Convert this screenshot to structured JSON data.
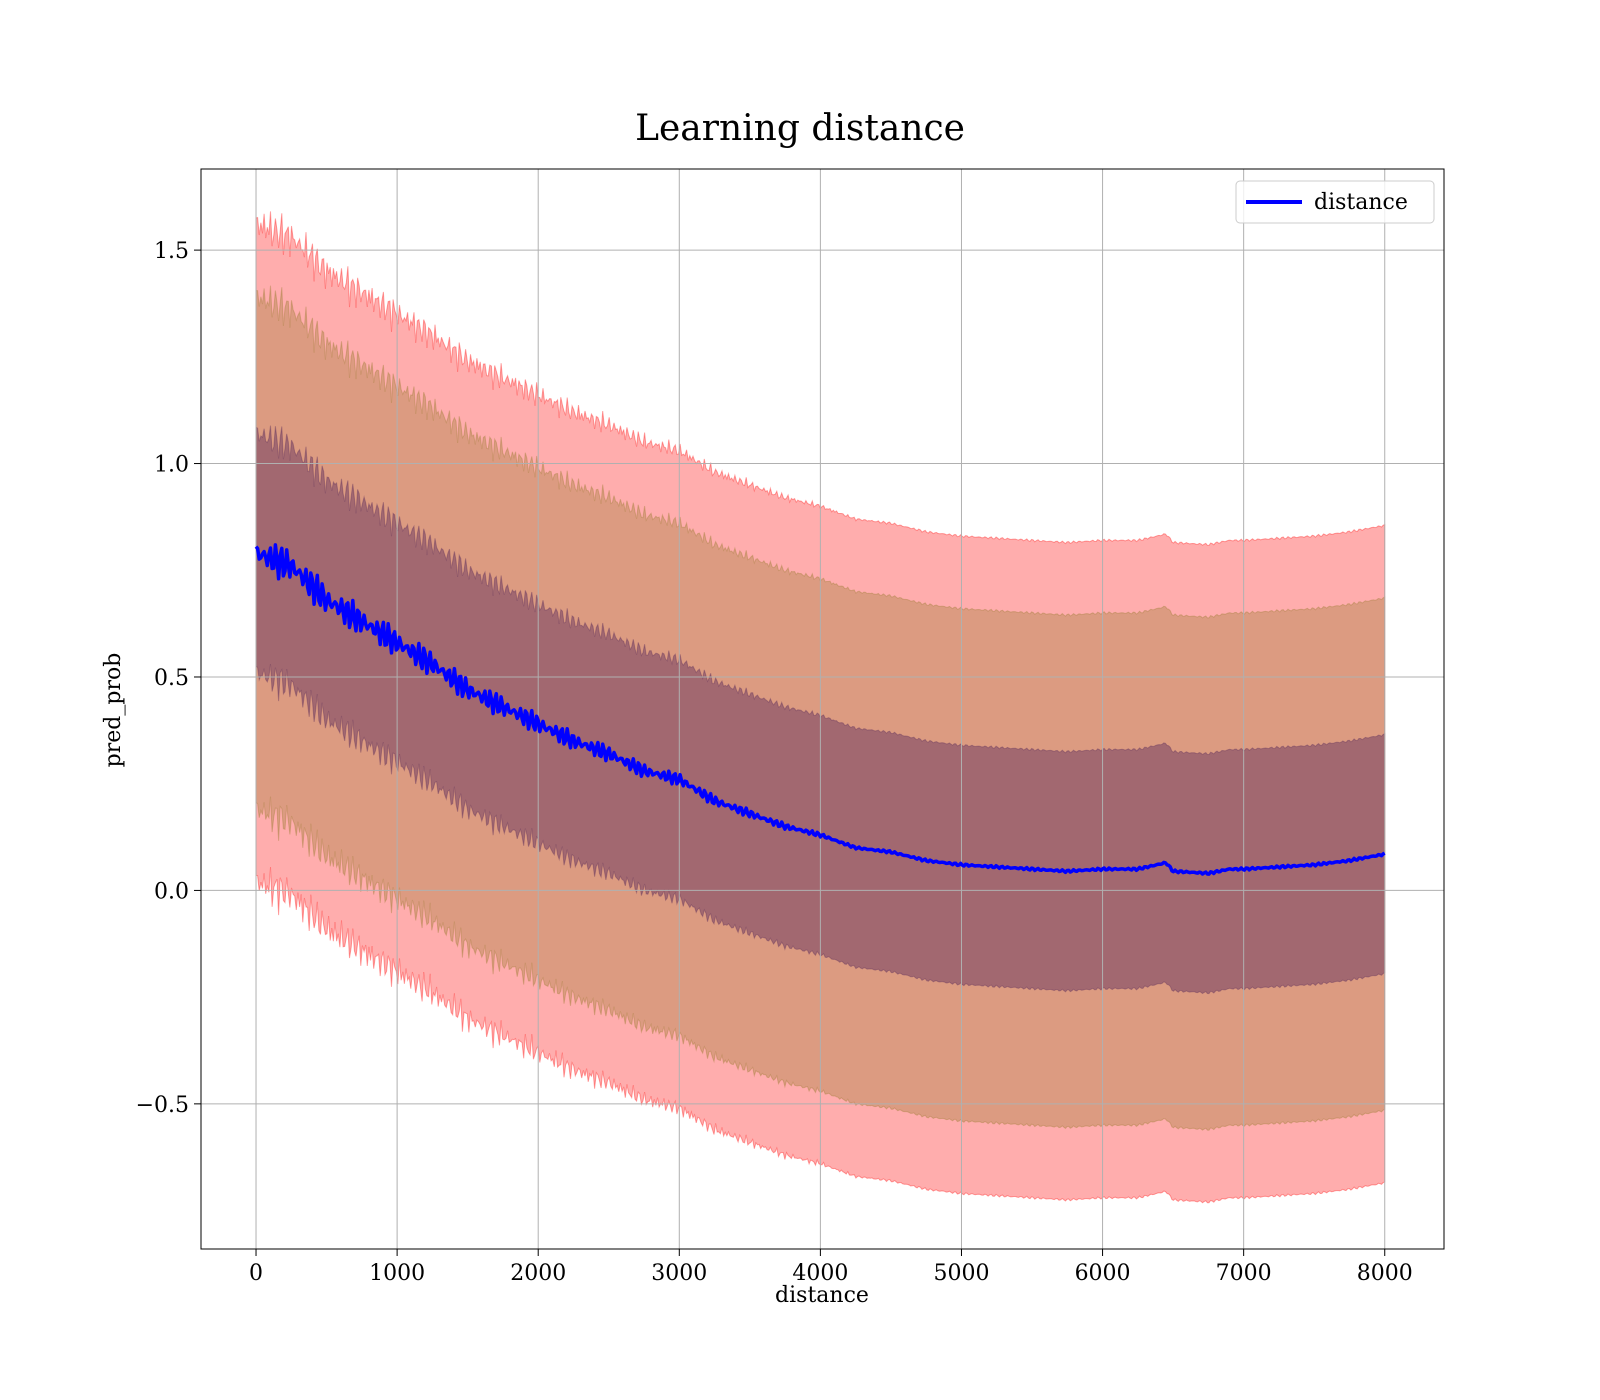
{
  "chart_data": {
    "type": "line",
    "title": "Learning distance",
    "xlabel": "distance",
    "ylabel": "pred_prob",
    "xlim": [
      -390,
      8420
    ],
    "ylim": [
      -0.84,
      1.69
    ],
    "xticks": [
      0,
      1000,
      2000,
      3000,
      4000,
      5000,
      6000,
      7000,
      8000
    ],
    "xtick_labels": [
      "0",
      "1000",
      "2000",
      "3000",
      "4000",
      "5000",
      "6000",
      "7000",
      "8000"
    ],
    "yticks": [
      -0.5,
      0.0,
      0.5,
      1.0,
      1.5
    ],
    "ytick_labels": [
      "−0.5",
      "0.0",
      "0.5",
      "1.0",
      "1.5"
    ],
    "grid": true,
    "legend": {
      "placement": "top-right",
      "entries": [
        "distance"
      ]
    },
    "colors": {
      "line": "#0000ff",
      "band": "#ff0000",
      "inner_band": "#5a2a5a"
    },
    "series": [
      {
        "name": "distance",
        "x": [
          0,
          250,
          500,
          750,
          1000,
          1250,
          1500,
          1750,
          2000,
          2250,
          2500,
          2750,
          3000,
          3250,
          3500,
          3750,
          4000,
          4250,
          4500,
          4750,
          5000,
          5250,
          5500,
          5750,
          6000,
          6250,
          6450,
          6500,
          6750,
          6900,
          7000,
          7250,
          7500,
          7750,
          8000
        ],
        "y": [
          0.79,
          0.76,
          0.68,
          0.63,
          0.58,
          0.53,
          0.47,
          0.43,
          0.39,
          0.35,
          0.32,
          0.28,
          0.26,
          0.21,
          0.18,
          0.15,
          0.13,
          0.1,
          0.09,
          0.07,
          0.06,
          0.055,
          0.05,
          0.045,
          0.05,
          0.05,
          0.065,
          0.045,
          0.04,
          0.05,
          0.05,
          0.055,
          0.06,
          0.07,
          0.085
        ]
      }
    ],
    "bands": [
      {
        "sigma": 1,
        "offset": 0.28
      },
      {
        "sigma": 2,
        "offset": 0.6
      },
      {
        "sigma": 3,
        "offset": 0.77
      }
    ]
  }
}
